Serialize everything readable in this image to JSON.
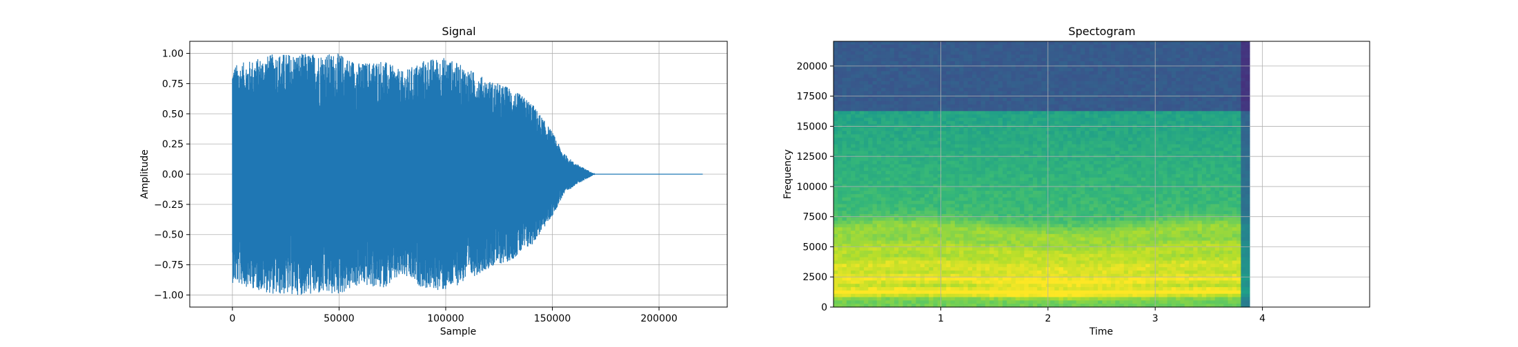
{
  "chart_data": [
    {
      "type": "line",
      "title": "Signal",
      "xlabel": "Sample",
      "ylabel": "Amplitude",
      "xlim": [
        -20000,
        232000
      ],
      "ylim": [
        -1.1,
        1.1
      ],
      "xticks": [
        0,
        50000,
        100000,
        150000,
        200000
      ],
      "xtick_labels": [
        "0",
        "50000",
        "100000",
        "150000",
        "200000"
      ],
      "yticks": [
        -1.0,
        -0.75,
        -0.5,
        -0.25,
        0.0,
        0.25,
        0.5,
        0.75,
        1.0
      ],
      "ytick_labels": [
        "−1.00",
        "−0.75",
        "−0.50",
        "−0.25",
        "0.00",
        "0.25",
        "0.50",
        "0.75",
        "1.00"
      ],
      "grid": true,
      "series_color": "#1f77b4",
      "signal_length": 220500,
      "envelope": {
        "x": [
          0,
          10000,
          20000,
          30000,
          40000,
          50000,
          60000,
          70000,
          80000,
          90000,
          100000,
          110000,
          120000,
          130000,
          140000,
          150000,
          155000,
          160000,
          165000,
          170000,
          220500
        ],
        "y": [
          0.9,
          0.95,
          1.0,
          1.0,
          1.0,
          1.0,
          0.92,
          0.95,
          0.85,
          0.95,
          0.97,
          0.88,
          0.78,
          0.72,
          0.6,
          0.35,
          0.18,
          0.1,
          0.05,
          0.0,
          0.0
        ]
      }
    },
    {
      "type": "heatmap",
      "title": "Spectogram",
      "xlabel": "Time",
      "ylabel": "Frequency",
      "xlim": [
        0,
        5
      ],
      "ylim": [
        0,
        22050
      ],
      "data_extent_x": [
        0,
        3.88
      ],
      "xticks": [
        1,
        2,
        3,
        4
      ],
      "xtick_labels": [
        "1",
        "2",
        "3",
        "4"
      ],
      "yticks": [
        0,
        2500,
        5000,
        7500,
        10000,
        12500,
        15000,
        17500,
        20000
      ],
      "ytick_labels": [
        "0",
        "2500",
        "5000",
        "7500",
        "10000",
        "12500",
        "15000",
        "17500",
        "20000"
      ],
      "grid": true,
      "colormap": "viridis",
      "harmonic_bands_hz": [
        1200,
        2200,
        3300,
        4600,
        6200
      ],
      "noise_floor_cutoff_hz": 16300
    }
  ]
}
